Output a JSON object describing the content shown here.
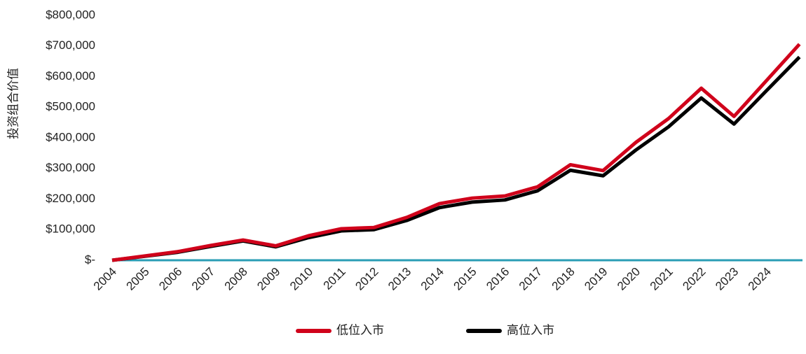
{
  "chart_data": {
    "type": "line",
    "y_label": "投资组合价值",
    "categories": [
      "2004",
      "2005",
      "2006",
      "2007",
      "2008",
      "2009",
      "2010",
      "2011",
      "2012",
      "2013",
      "2014",
      "2015",
      "2016",
      "2017",
      "2018",
      "2019",
      "2020",
      "2021",
      "2022",
      "2023",
      "2024",
      null
    ],
    "series": [
      {
        "name": "低位入市",
        "color": "#d0021b",
        "values": [
          0,
          14000,
          28000,
          48000,
          66000,
          47000,
          80000,
          103000,
          107000,
          140000,
          185000,
          203000,
          210000,
          240000,
          312000,
          293000,
          385000,
          463000,
          562000,
          470000,
          588000,
          706000
        ]
      },
      {
        "name": "高位入市",
        "color": "#000000",
        "values": [
          0,
          13000,
          26000,
          45000,
          63000,
          44000,
          74000,
          96000,
          100000,
          130000,
          172000,
          190000,
          197000,
          227000,
          294000,
          276000,
          360000,
          436000,
          530000,
          445000,
          555000,
          664000
        ]
      }
    ],
    "ylim": [
      0,
      800000
    ],
    "yticks": [
      {
        "value": 0,
        "label": "$-"
      },
      {
        "value": 100000,
        "label": "$100,000"
      },
      {
        "value": 200000,
        "label": "$200,000"
      },
      {
        "value": 300000,
        "label": "$300,000"
      },
      {
        "value": 400000,
        "label": "$400,000"
      },
      {
        "value": 500000,
        "label": "$500,000"
      },
      {
        "value": 600000,
        "label": "$600,000"
      },
      {
        "value": 700000,
        "label": "$700,000"
      },
      {
        "value": 800000,
        "label": "$800,000"
      }
    ],
    "grid": false,
    "legend": "bottom"
  }
}
